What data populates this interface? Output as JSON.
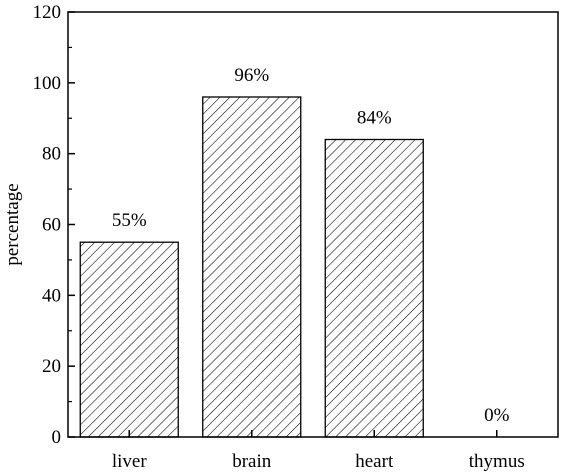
{
  "chart_data": {
    "type": "bar",
    "title": "",
    "xlabel": "",
    "ylabel": "percentage",
    "categories": [
      "liver",
      "brain",
      "heart",
      "thymus"
    ],
    "values": [
      55,
      96,
      84,
      0
    ],
    "data_labels": [
      "55%",
      "96%",
      "84%",
      "0%"
    ],
    "ylim": [
      0,
      120
    ],
    "yticks": [
      0,
      20,
      40,
      60,
      80,
      100,
      120
    ],
    "bar_fill": "diagonal hatch",
    "grid": false,
    "legend": "none"
  },
  "colors": {
    "bar_stroke": "#000000",
    "hatch": "#000000",
    "background": "#ffffff"
  }
}
